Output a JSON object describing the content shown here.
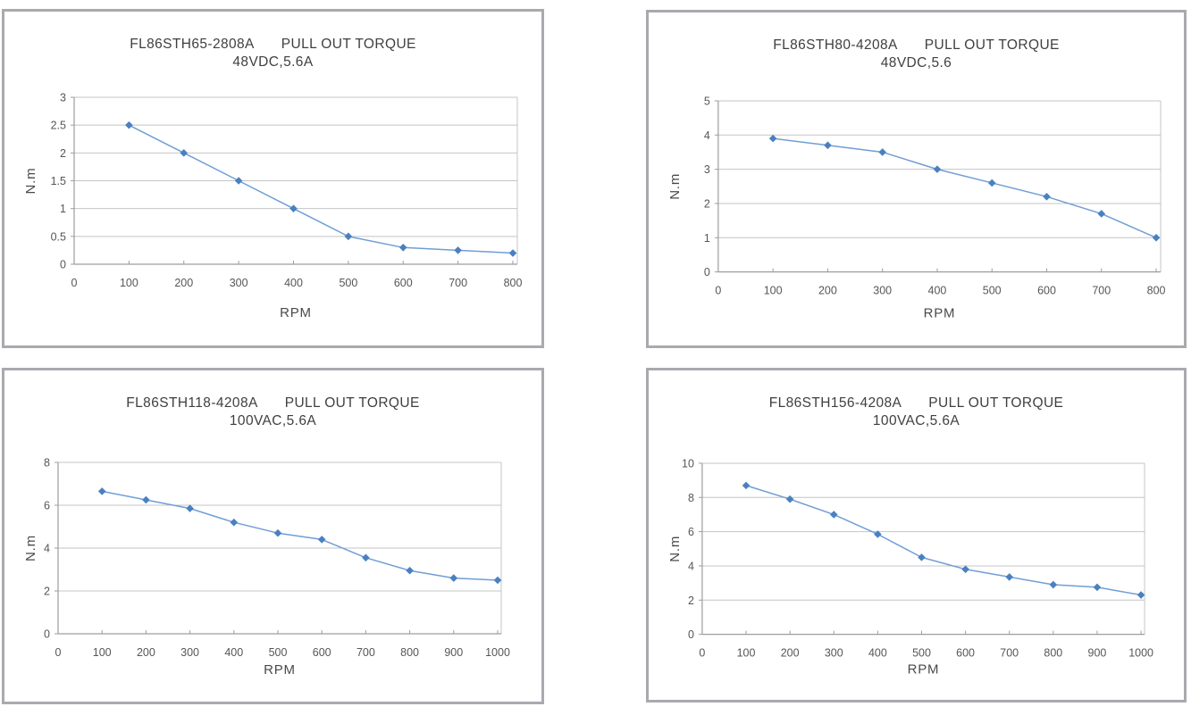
{
  "page": {
    "background": "#ffffff",
    "panel_border_color": "#a9a9ae",
    "gridline_color": "#c4c4c4",
    "axis_color": "#9d9da0"
  },
  "chart_data": [
    {
      "type": "line",
      "title_model": "FL86STH65-2808A",
      "title_main": "PULL OUT TORQUE",
      "subtitle": "48VDC,5.6A",
      "xlabel": "RPM",
      "ylabel": "N.m",
      "x": [
        100,
        200,
        300,
        400,
        500,
        600,
        700,
        800
      ],
      "y": [
        2.5,
        2.0,
        1.5,
        1.0,
        0.5,
        0.3,
        0.25,
        0.2
      ],
      "xlim": [
        0,
        800
      ],
      "ylim": [
        0,
        3
      ],
      "xticks": [
        0,
        100,
        200,
        300,
        400,
        500,
        600,
        700,
        800
      ],
      "yticks": [
        0,
        0.5,
        1,
        1.5,
        2,
        2.5,
        3
      ],
      "grid": "horizontal",
      "legend": "none",
      "line_color": "#6f9ed6",
      "marker": "diamond",
      "marker_color": "#4a80c0"
    },
    {
      "type": "line",
      "title_model": "FL86STH80-4208A",
      "title_main": "PULL OUT TORQUE",
      "subtitle": "48VDC,5.6",
      "xlabel": "RPM",
      "ylabel": "N.m",
      "x": [
        100,
        200,
        300,
        400,
        500,
        600,
        700,
        800
      ],
      "y": [
        3.9,
        3.7,
        3.5,
        3.0,
        2.6,
        2.2,
        1.7,
        1.0
      ],
      "xlim": [
        0,
        800
      ],
      "ylim": [
        0,
        5
      ],
      "xticks": [
        0,
        100,
        200,
        300,
        400,
        500,
        600,
        700,
        800
      ],
      "yticks": [
        0,
        1,
        2,
        3,
        4,
        5
      ],
      "grid": "horizontal",
      "legend": "none",
      "line_color": "#6f9ed6",
      "marker": "diamond",
      "marker_color": "#4a80c0"
    },
    {
      "type": "line",
      "title_model": "FL86STH118-4208A",
      "title_main": "PULL OUT TORQUE",
      "subtitle": "100VAC,5.6A",
      "xlabel": "RPM",
      "ylabel": "N.m",
      "x": [
        100,
        200,
        300,
        400,
        500,
        600,
        700,
        800,
        900,
        1000
      ],
      "y": [
        6.65,
        6.25,
        5.85,
        5.2,
        4.7,
        4.4,
        3.55,
        2.95,
        2.6,
        2.5
      ],
      "xlim": [
        0,
        1000
      ],
      "ylim": [
        0,
        8
      ],
      "xticks": [
        0,
        100,
        200,
        300,
        400,
        500,
        600,
        700,
        800,
        900,
        1000
      ],
      "yticks": [
        0,
        2,
        4,
        6,
        8
      ],
      "grid": "horizontal",
      "legend": "none",
      "line_color": "#6f9ed6",
      "marker": "diamond",
      "marker_color": "#4a80c0"
    },
    {
      "type": "line",
      "title_model": "FL86STH156-4208A",
      "title_main": "PULL OUT TORQUE",
      "subtitle": "100VAC,5.6A",
      "xlabel": "RPM",
      "ylabel": "N.m",
      "x": [
        100,
        200,
        300,
        400,
        500,
        600,
        700,
        800,
        900,
        1000
      ],
      "y": [
        8.7,
        7.9,
        7.0,
        5.85,
        4.5,
        3.8,
        3.35,
        2.9,
        2.75,
        2.3
      ],
      "xlim": [
        0,
        1000
      ],
      "ylim": [
        0,
        10
      ],
      "xticks": [
        0,
        100,
        200,
        300,
        400,
        500,
        600,
        700,
        800,
        900,
        1000
      ],
      "yticks": [
        0,
        2,
        4,
        6,
        8,
        10
      ],
      "grid": "horizontal",
      "legend": "none",
      "line_color": "#6f9ed6",
      "marker": "diamond",
      "marker_color": "#4a80c0"
    }
  ]
}
